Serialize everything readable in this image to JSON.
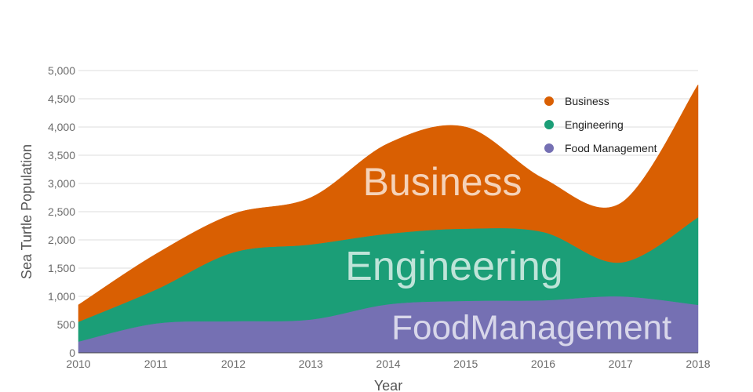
{
  "chart_data": {
    "type": "area",
    "stacked": true,
    "smooth": true,
    "title": "",
    "xlabel": "Year",
    "ylabel": "Sea Turtle Population",
    "x": [
      2010,
      2011,
      2012,
      2013,
      2014,
      2015,
      2016,
      2017,
      2018
    ],
    "xlim": [
      2010,
      2018
    ],
    "ylim": [
      0,
      5000
    ],
    "yticks": [
      0,
      500,
      1000,
      1500,
      2000,
      2500,
      3000,
      3500,
      4000,
      4500,
      5000
    ],
    "ytick_labels": [
      "0",
      "500",
      "1,000",
      "1,500",
      "2,000",
      "2,500",
      "3,000",
      "3,500",
      "4,000",
      "4,500",
      "5,000"
    ],
    "grid": true,
    "legend_position": "top-right",
    "series": [
      {
        "name": "Food Management",
        "color": "#7570b3",
        "label": "FoodManagement",
        "values": [
          200,
          520,
          560,
          590,
          860,
          920,
          930,
          1000,
          850
        ]
      },
      {
        "name": "Engineering",
        "color": "#1b9e77",
        "label": "Engineering",
        "values": [
          350,
          600,
          1220,
          1330,
          1250,
          1280,
          1210,
          600,
          1550
        ]
      },
      {
        "name": "Business",
        "color": "#d95f02",
        "label": "Business",
        "values": [
          300,
          630,
          680,
          830,
          1600,
          1800,
          950,
          1050,
          2350
        ]
      }
    ],
    "legend_order": [
      "Business",
      "Engineering",
      "Food Management"
    ]
  }
}
